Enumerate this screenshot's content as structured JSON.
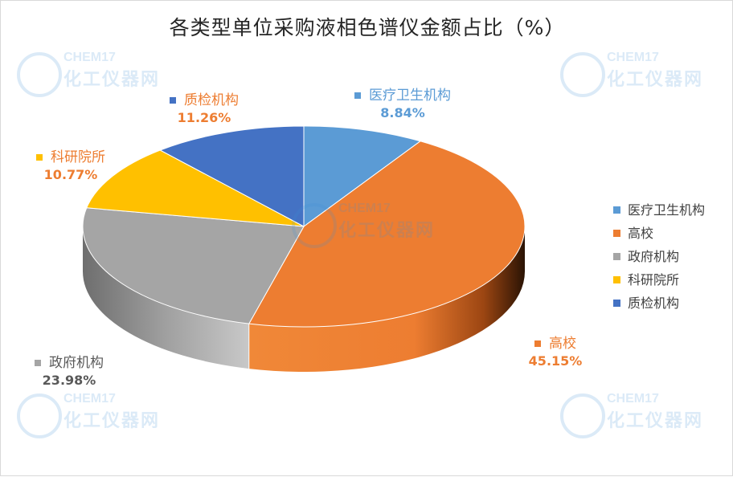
{
  "title": "各类型单位采购液相色谱仪金额占比（%）",
  "watermark": {
    "top": "CHEM17",
    "bottom": "化工仪器网"
  },
  "chart_data": {
    "type": "pie",
    "title": "各类型单位采购液相色谱仪金额占比（%）",
    "legend_position": "right",
    "slices": [
      {
        "name": "医疗卫生机构",
        "value": 8.84,
        "label": "8.84%",
        "color": "#5B9BD5"
      },
      {
        "name": "高校",
        "value": 45.15,
        "label": "45.15%",
        "color": "#ED7D31"
      },
      {
        "name": "政府机构",
        "value": 23.98,
        "label": "23.98%",
        "color": "#A5A5A5"
      },
      {
        "name": "科研院所",
        "value": 10.77,
        "label": "10.77%",
        "color": "#FFC000"
      },
      {
        "name": "质检机构",
        "value": 11.26,
        "label": "11.26%",
        "color": "#4472C4"
      }
    ]
  }
}
